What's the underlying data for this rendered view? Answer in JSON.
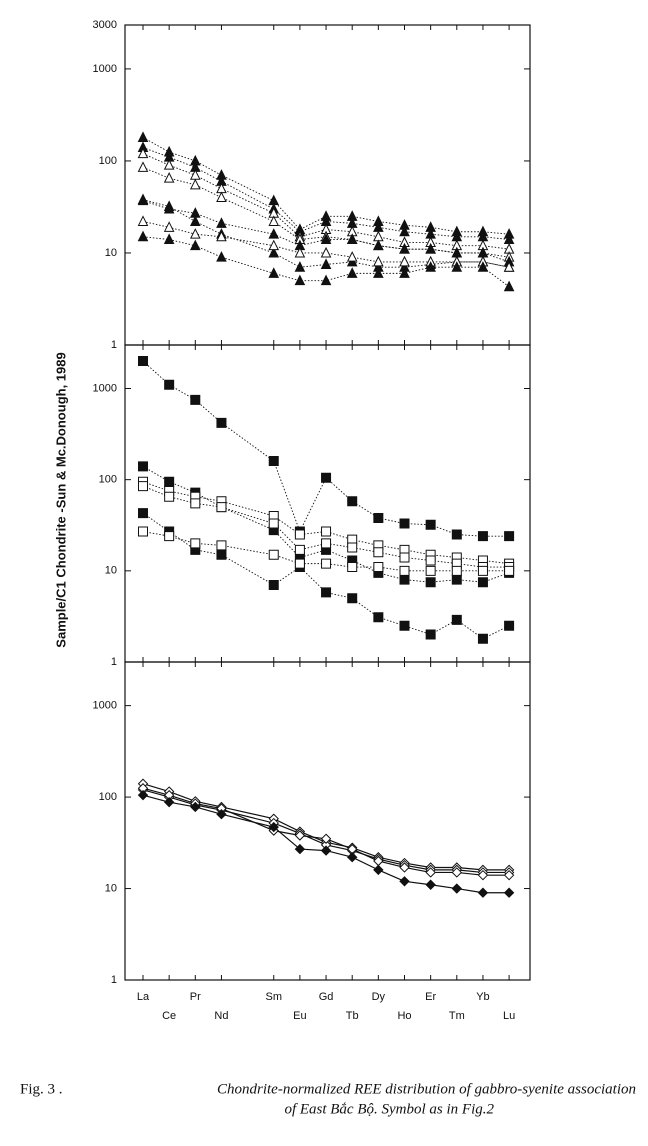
{
  "figure": {
    "ylabel": "Sample/C1 Chondrite -Sun & Mc.Donough, 1989",
    "caption_label": "Fig. 3 .",
    "caption": [
      "Chondrite-normalized REE distribution of gabbro-syenite association",
      "of East Bắc Bộ. Symbol as in Fig.2"
    ]
  },
  "chart_data": [
    {
      "type": "line",
      "log": true,
      "ylim": [
        1,
        3000
      ],
      "yticks": [
        1,
        10,
        100,
        1000,
        3000
      ],
      "line_style": "dotted",
      "series": [
        {
          "marker": "triangle",
          "filled": true,
          "color": "#111",
          "values": [
            180,
            125,
            100,
            70,
            37,
            18,
            25,
            25,
            22,
            20,
            19,
            17,
            17,
            16
          ]
        },
        {
          "marker": "triangle",
          "filled": true,
          "color": "#111",
          "values": [
            140,
            110,
            85,
            60,
            30,
            17,
            22,
            21,
            19,
            17,
            16,
            15,
            15,
            14
          ]
        },
        {
          "marker": "triangle",
          "filled": false,
          "color": "#111",
          "values": [
            120,
            90,
            70,
            50,
            27,
            15,
            18,
            17,
            15,
            13,
            13,
            12,
            12,
            11
          ]
        },
        {
          "marker": "triangle",
          "filled": false,
          "color": "#111",
          "values": [
            85,
            65,
            55,
            40,
            22,
            14,
            15,
            14,
            12,
            11,
            11,
            10,
            10,
            9
          ]
        },
        {
          "marker": "triangle",
          "filled": true,
          "color": "#111",
          "values": [
            37,
            30,
            27,
            21,
            16,
            12,
            14,
            14,
            12,
            11,
            11,
            10,
            10,
            8
          ]
        },
        {
          "marker": "triangle",
          "filled": true,
          "color": "#111",
          "values": [
            38,
            32,
            22,
            16,
            10,
            7,
            7.5,
            8,
            7,
            7,
            7.5,
            8,
            8,
            7
          ]
        },
        {
          "marker": "triangle",
          "filled": false,
          "color": "#111",
          "values": [
            22,
            19,
            16,
            15,
            12,
            10,
            10,
            9,
            8,
            8,
            8,
            8,
            8,
            7
          ]
        },
        {
          "marker": "triangle",
          "filled": true,
          "color": "#111",
          "values": [
            15,
            14,
            12,
            9,
            6,
            5,
            5,
            6,
            6,
            6,
            7,
            7,
            7,
            4.3
          ]
        }
      ]
    },
    {
      "type": "line",
      "log": true,
      "ylim": [
        1,
        3000
      ],
      "yticks": [
        1,
        10,
        100,
        1000
      ],
      "line_style": "dotted",
      "series": [
        {
          "marker": "square",
          "filled": true,
          "color": "#111",
          "values": [
            2000,
            1100,
            750,
            420,
            160,
            27,
            105,
            58,
            38,
            33,
            32,
            25,
            24,
            24
          ]
        },
        {
          "marker": "square",
          "filled": true,
          "color": "#111",
          "values": [
            140,
            95,
            72,
            50,
            28,
            14,
            17,
            13,
            9.5,
            8,
            7.5,
            8,
            7.5,
            9.5
          ]
        },
        {
          "marker": "square",
          "filled": false,
          "color": "#111",
          "values": [
            95,
            75,
            65,
            58,
            40,
            25,
            27,
            22,
            19,
            17,
            15,
            14,
            13,
            12
          ]
        },
        {
          "marker": "square",
          "filled": false,
          "color": "#111",
          "values": [
            85,
            65,
            55,
            50,
            33,
            17,
            20,
            18,
            16,
            14,
            13,
            12,
            11,
            11
          ]
        },
        {
          "marker": "square",
          "filled": true,
          "color": "#111",
          "values": [
            43,
            27,
            17,
            15,
            7,
            11,
            5.8,
            5,
            3.1,
            2.5,
            2,
            2.9,
            1.8,
            2.5
          ]
        },
        {
          "marker": "square",
          "filled": false,
          "color": "#111",
          "values": [
            27,
            24,
            20,
            19,
            15,
            12,
            12,
            11,
            11,
            10,
            10,
            10,
            10,
            10
          ]
        }
      ]
    },
    {
      "type": "line",
      "log": true,
      "ylim": [
        1,
        3000
      ],
      "yticks": [
        1,
        10,
        100,
        1000
      ],
      "line_style": "solid",
      "categories": [
        "La",
        "Ce",
        "Pr",
        "Nd",
        "Sm",
        "Eu",
        "Gd",
        "Tb",
        "Dy",
        "Ho",
        "Er",
        "Tm",
        "Yb",
        "Lu"
      ],
      "series": [
        {
          "marker": "diamond",
          "filled": false,
          "color": "#111",
          "values": [
            140,
            115,
            90,
            78,
            58,
            42,
            32,
            28,
            22,
            19,
            17,
            17,
            16,
            16
          ]
        },
        {
          "marker": "diamond",
          "filled": false,
          "color": "#111",
          "values": [
            120,
            100,
            82,
            72,
            52,
            40,
            30,
            26,
            21,
            18,
            16,
            16,
            15,
            15
          ]
        },
        {
          "marker": "diamond",
          "filled": false,
          "color": "#111",
          "values": [
            125,
            105,
            85,
            75,
            43,
            38,
            35,
            27,
            20,
            17,
            15,
            15,
            14,
            14
          ]
        },
        {
          "marker": "diamond",
          "filled": true,
          "color": "#111",
          "values": [
            105,
            88,
            78,
            65,
            47,
            27,
            26,
            22,
            16,
            12,
            11,
            10,
            9,
            9
          ]
        }
      ]
    }
  ]
}
